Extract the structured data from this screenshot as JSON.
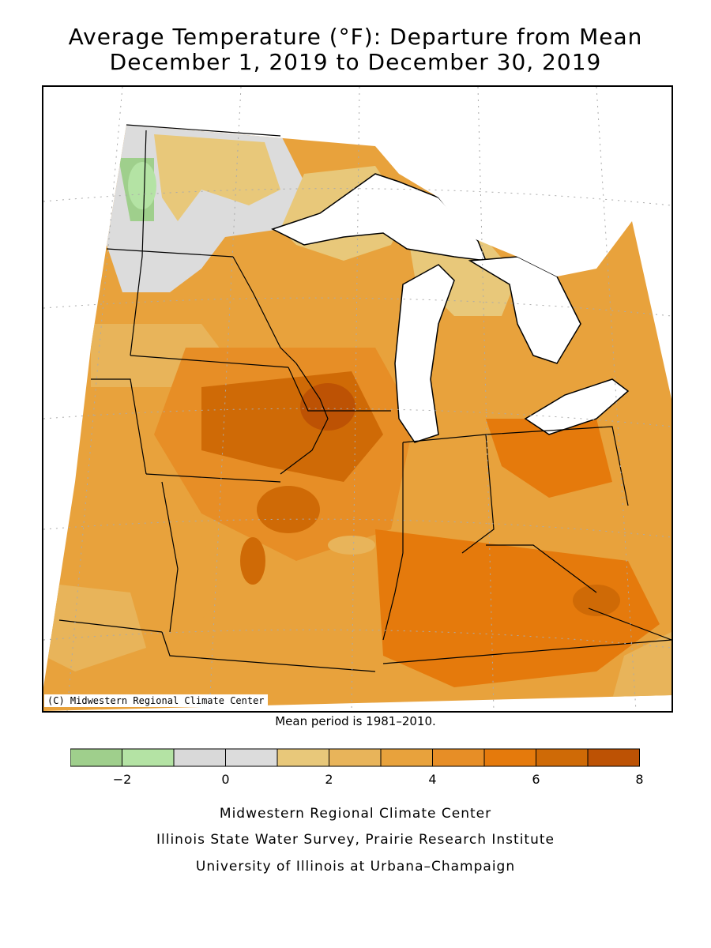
{
  "title_line1": "Average Temperature (°F): Departure from Mean",
  "title_line2": "December 1, 2019 to December 30, 2019",
  "copyright": "(C) Midwestern Regional Climate Center",
  "mean_period": "Mean period is 1981–2010.",
  "legend": {
    "colors": [
      "#9fcf8c",
      "#b4e3a4",
      "#d9d9d9",
      "#dcdcdc",
      "#e8c87a",
      "#e8b45a",
      "#e8a23c",
      "#e78e26",
      "#e57a0c",
      "#cf6a06",
      "#bd5204"
    ],
    "tick_labels": [
      "−2",
      "0",
      "2",
      "4",
      "6",
      "8"
    ]
  },
  "credits": [
    "Midwestern Regional Climate Center",
    "Illinois State Water Survey, Prairie Research Institute",
    "University of Illinois at Urbana–Champaign"
  ]
}
